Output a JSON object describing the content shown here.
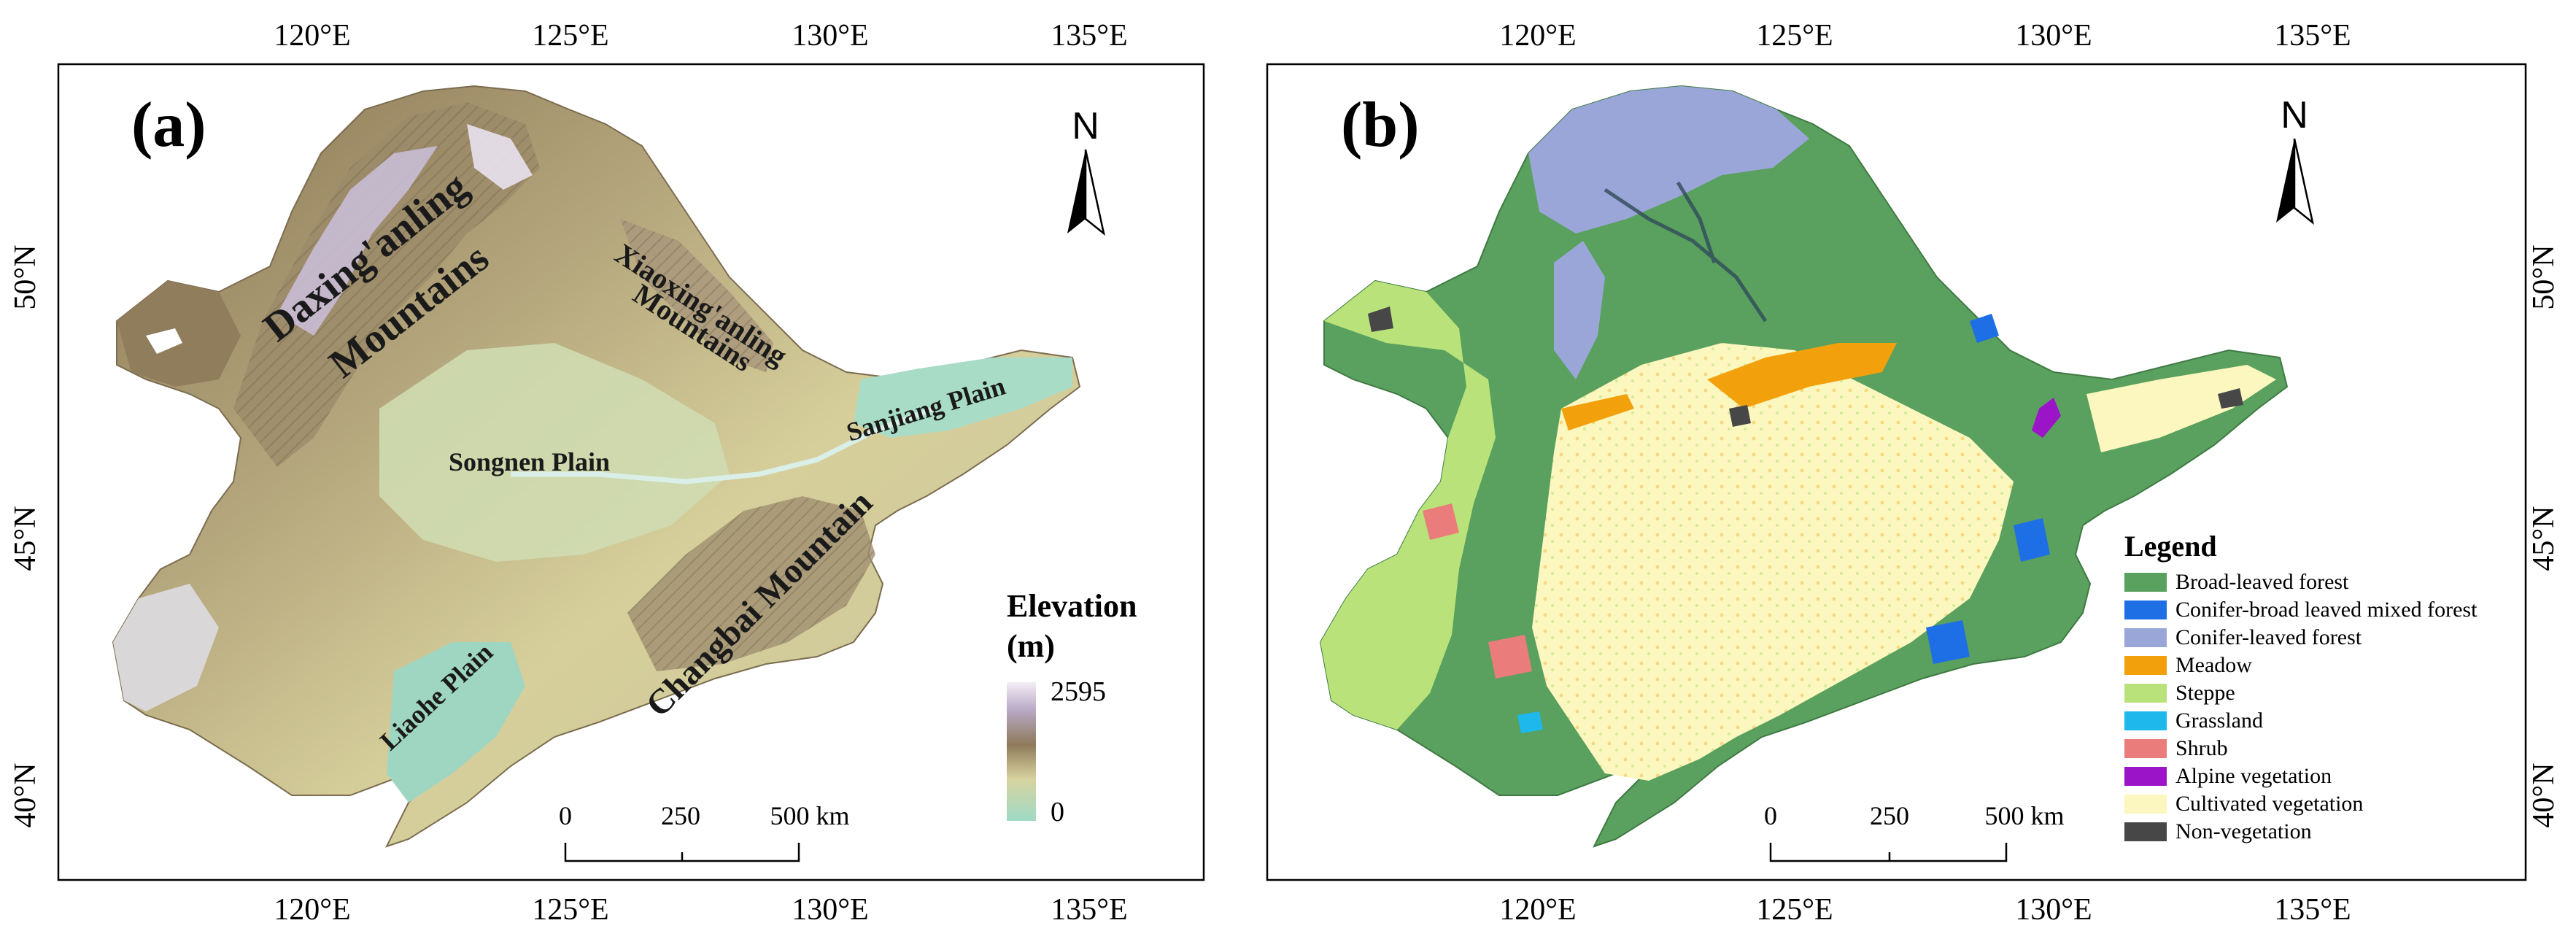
{
  "panels": [
    {
      "id": "a",
      "label": "(a)",
      "top_ticks": [
        "120°E",
        "125°E",
        "130°E",
        "135°E"
      ],
      "bottom_ticks": [
        "120°E",
        "125°E",
        "130°E",
        "135°E"
      ],
      "left_ticks": [
        "50°N",
        "45°N",
        "40°N"
      ],
      "places": {
        "daxing": "Daxing'anling",
        "daxing2": "Mountains",
        "xiaoxing": "Xiaoxing'anling",
        "xiaoxing2": "Mountains",
        "sanjiang": "Sanjiang Plain",
        "songnen": "Songnen Plain",
        "changbai": "Changbai Mountain",
        "liaohe": "Liaohe Plain"
      },
      "elevation": {
        "title": "Elevation",
        "unit": "(m)",
        "max": "2595",
        "min": "0"
      },
      "scalebar": [
        "0",
        "250",
        "500 km"
      ],
      "north": "N"
    },
    {
      "id": "b",
      "label": "(b)",
      "top_ticks": [
        "120°E",
        "125°E",
        "130°E",
        "135°E"
      ],
      "bottom_ticks": [
        "120°E",
        "125°E",
        "130°E",
        "135°E"
      ],
      "right_ticks": [
        "50°N",
        "45°N",
        "40°N"
      ],
      "scalebar": [
        "0",
        "250",
        "500 km"
      ],
      "north": "N",
      "legend": {
        "title": "Legend",
        "items": [
          {
            "label": "Broad-leaved forest",
            "color": "#5aa05e"
          },
          {
            "label": "Conifer-broad leaved mixed forest",
            "color": "#1e6ee6"
          },
          {
            "label": "Conifer-leaved forest",
            "color": "#9aa6d8"
          },
          {
            "label": "Meadow",
            "color": "#f2a10c"
          },
          {
            "label": "Steppe",
            "color": "#b9e37a"
          },
          {
            "label": "Grassland",
            "color": "#1fb8ec"
          },
          {
            "label": "Shrub",
            "color": "#ea7d7b"
          },
          {
            "label": "Alpine vegetation",
            "color": "#9b14c8"
          },
          {
            "label": "Cultivated vegetation",
            "color": "#fbf7bf"
          },
          {
            "label": "Non-vegetation",
            "color": "#474747"
          }
        ]
      }
    }
  ],
  "colors": {
    "elev_high": "#ece4f1",
    "elev_mid": "#a08b6a",
    "elev_low_mid": "#d8d3a0",
    "elev_low": "#a8dcc7"
  }
}
